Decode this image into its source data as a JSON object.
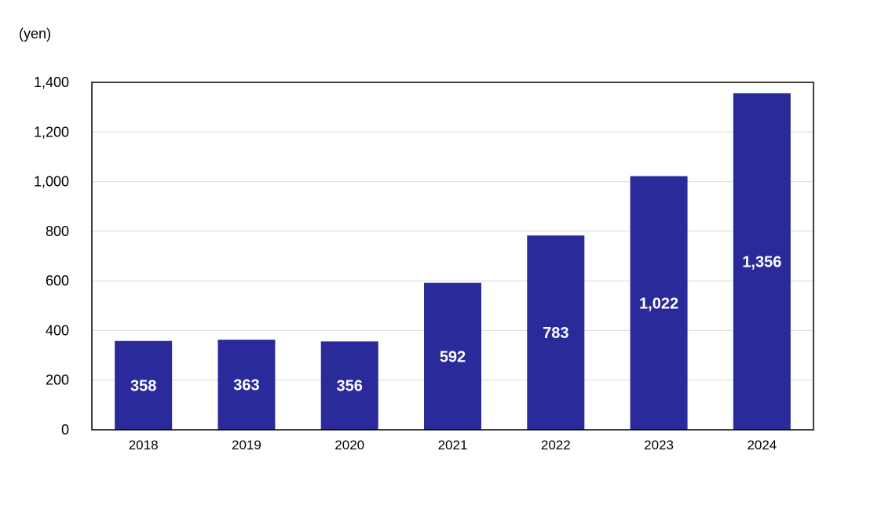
{
  "chart_data": {
    "type": "bar",
    "unit_label": "(yen)",
    "categories": [
      "2018",
      "2019",
      "2020",
      "2021",
      "2022",
      "2023",
      "2024"
    ],
    "values": [
      358,
      363,
      356,
      592,
      783,
      1022,
      1356
    ],
    "data_labels": [
      "358",
      "363",
      "356",
      "592",
      "783",
      "1,022",
      "1,356"
    ],
    "y_ticks": [
      {
        "value": 0,
        "label": "0"
      },
      {
        "value": 200,
        "label": "200"
      },
      {
        "value": 400,
        "label": "400"
      },
      {
        "value": 600,
        "label": "600"
      },
      {
        "value": 800,
        "label": "800"
      },
      {
        "value": 1000,
        "label": "1,000"
      },
      {
        "value": 1200,
        "label": "1,200"
      },
      {
        "value": 1400,
        "label": "1,400"
      }
    ],
    "ylim": [
      0,
      1400
    ],
    "grid": true,
    "legend": "none",
    "colors": {
      "bar": "#2b2a9b",
      "grid": "#d9d9d9",
      "frame": "#000000"
    }
  }
}
